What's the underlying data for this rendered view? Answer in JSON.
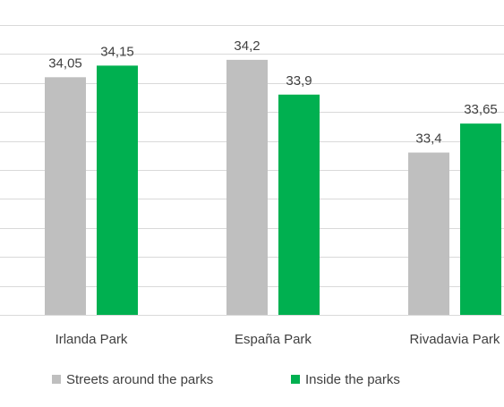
{
  "chart_data": {
    "type": "bar",
    "categories": [
      "Irlanda Park",
      "España Park",
      "Rivadavia Park"
    ],
    "series": [
      {
        "name": "Streets around the parks",
        "color": "#bfbfbf",
        "values": [
          34.05,
          34.2,
          33.4
        ],
        "labels": [
          "34,05",
          "34,2",
          "33,4"
        ]
      },
      {
        "name": "Inside the parks",
        "color": "#00b050",
        "values": [
          34.15,
          33.9,
          33.65
        ],
        "labels": [
          "34,15",
          "33,9",
          "33,65"
        ]
      }
    ],
    "ylim": [
      32.0,
      34.5
    ],
    "grid": true,
    "legend": "bottom-left"
  }
}
